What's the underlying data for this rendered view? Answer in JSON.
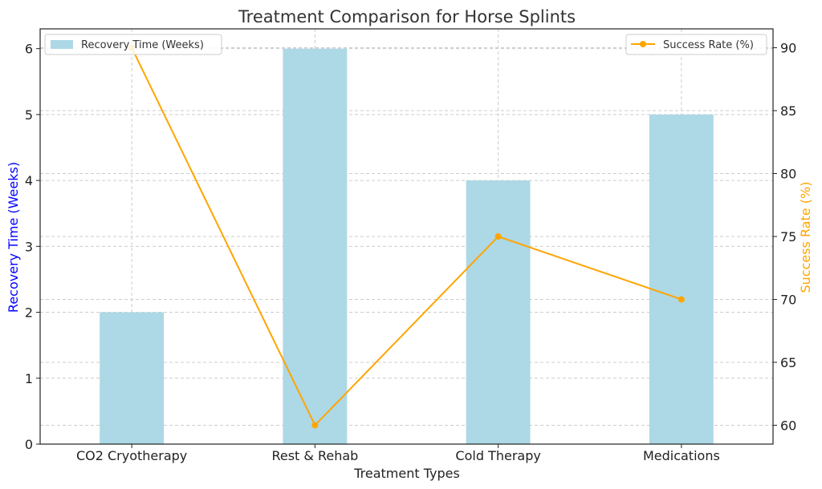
{
  "chart_data": {
    "type": "bar+line",
    "title": "Treatment Comparison for Horse Splints",
    "xlabel": "Treatment Types",
    "categories": [
      "CO2 Cryotherapy",
      "Rest & Rehab",
      "Cold Therapy",
      "Medications"
    ],
    "series": [
      {
        "name": "Recovery Time (Weeks)",
        "type": "bar",
        "axis": "left",
        "values": [
          2,
          6,
          4,
          5
        ],
        "color": "#add8e6"
      },
      {
        "name": "Success Rate (%)",
        "type": "line",
        "axis": "right",
        "values": [
          90,
          60,
          75,
          70
        ],
        "color": "#ffa500"
      }
    ],
    "y_left": {
      "label": "Recovery Time (Weeks)",
      "label_color": "#0000ff",
      "ylim": [
        0,
        6.3
      ],
      "ticks": [
        0,
        1,
        2,
        3,
        4,
        5,
        6
      ]
    },
    "y_right": {
      "label": "Success Rate (%)",
      "label_color": "#ffa500",
      "ylim": [
        58.5,
        91.5
      ],
      "ticks": [
        60,
        65,
        70,
        75,
        80,
        85,
        90
      ]
    },
    "grid": true,
    "legend_bar_position": "top-left",
    "legend_line_position": "top-right"
  }
}
